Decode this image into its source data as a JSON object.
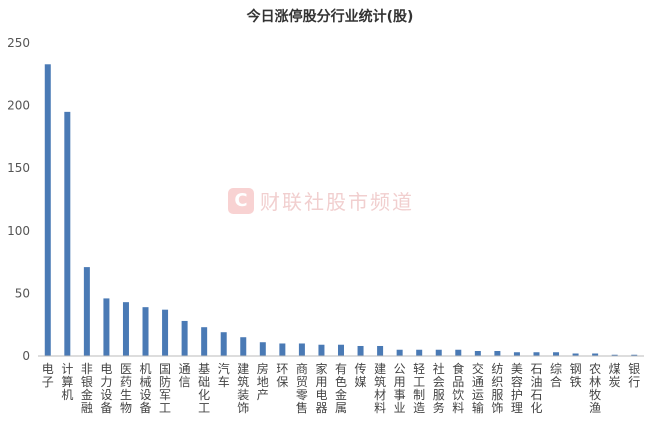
{
  "chart_data": {
    "type": "bar",
    "title": "今日涨停股分行业统计(股)",
    "xlabel": "",
    "ylabel": "",
    "ylim": [
      0,
      250
    ],
    "yticks": [
      0,
      50,
      100,
      150,
      200,
      250
    ],
    "grid": false,
    "legend": "none",
    "bar_color": "#4a7ab5",
    "categories": [
      "电子",
      "计算机",
      "非银金融",
      "电力设备",
      "医药生物",
      "机械设备",
      "国防军工",
      "通信",
      "基础化工",
      "汽车",
      "建筑装饰",
      "房地产",
      "环保",
      "商贸零售",
      "家用电器",
      "有色金属",
      "传媒",
      "建筑材料",
      "公用事业",
      "轻工制造",
      "社会服务",
      "食品饮料",
      "交通运输",
      "纺织服饰",
      "美容护理",
      "石油石化",
      "综合",
      "钢铁",
      "农林牧渔",
      "煤炭",
      "银行"
    ],
    "values": [
      233,
      195,
      71,
      46,
      43,
      39,
      37,
      28,
      23,
      19,
      15,
      11,
      10,
      10,
      9,
      9,
      8,
      8,
      5,
      5,
      5,
      5,
      4,
      4,
      3,
      3,
      3,
      2,
      2,
      1,
      1
    ]
  },
  "watermark": {
    "logo_letter": "C",
    "text": "财联社股市频道"
  }
}
